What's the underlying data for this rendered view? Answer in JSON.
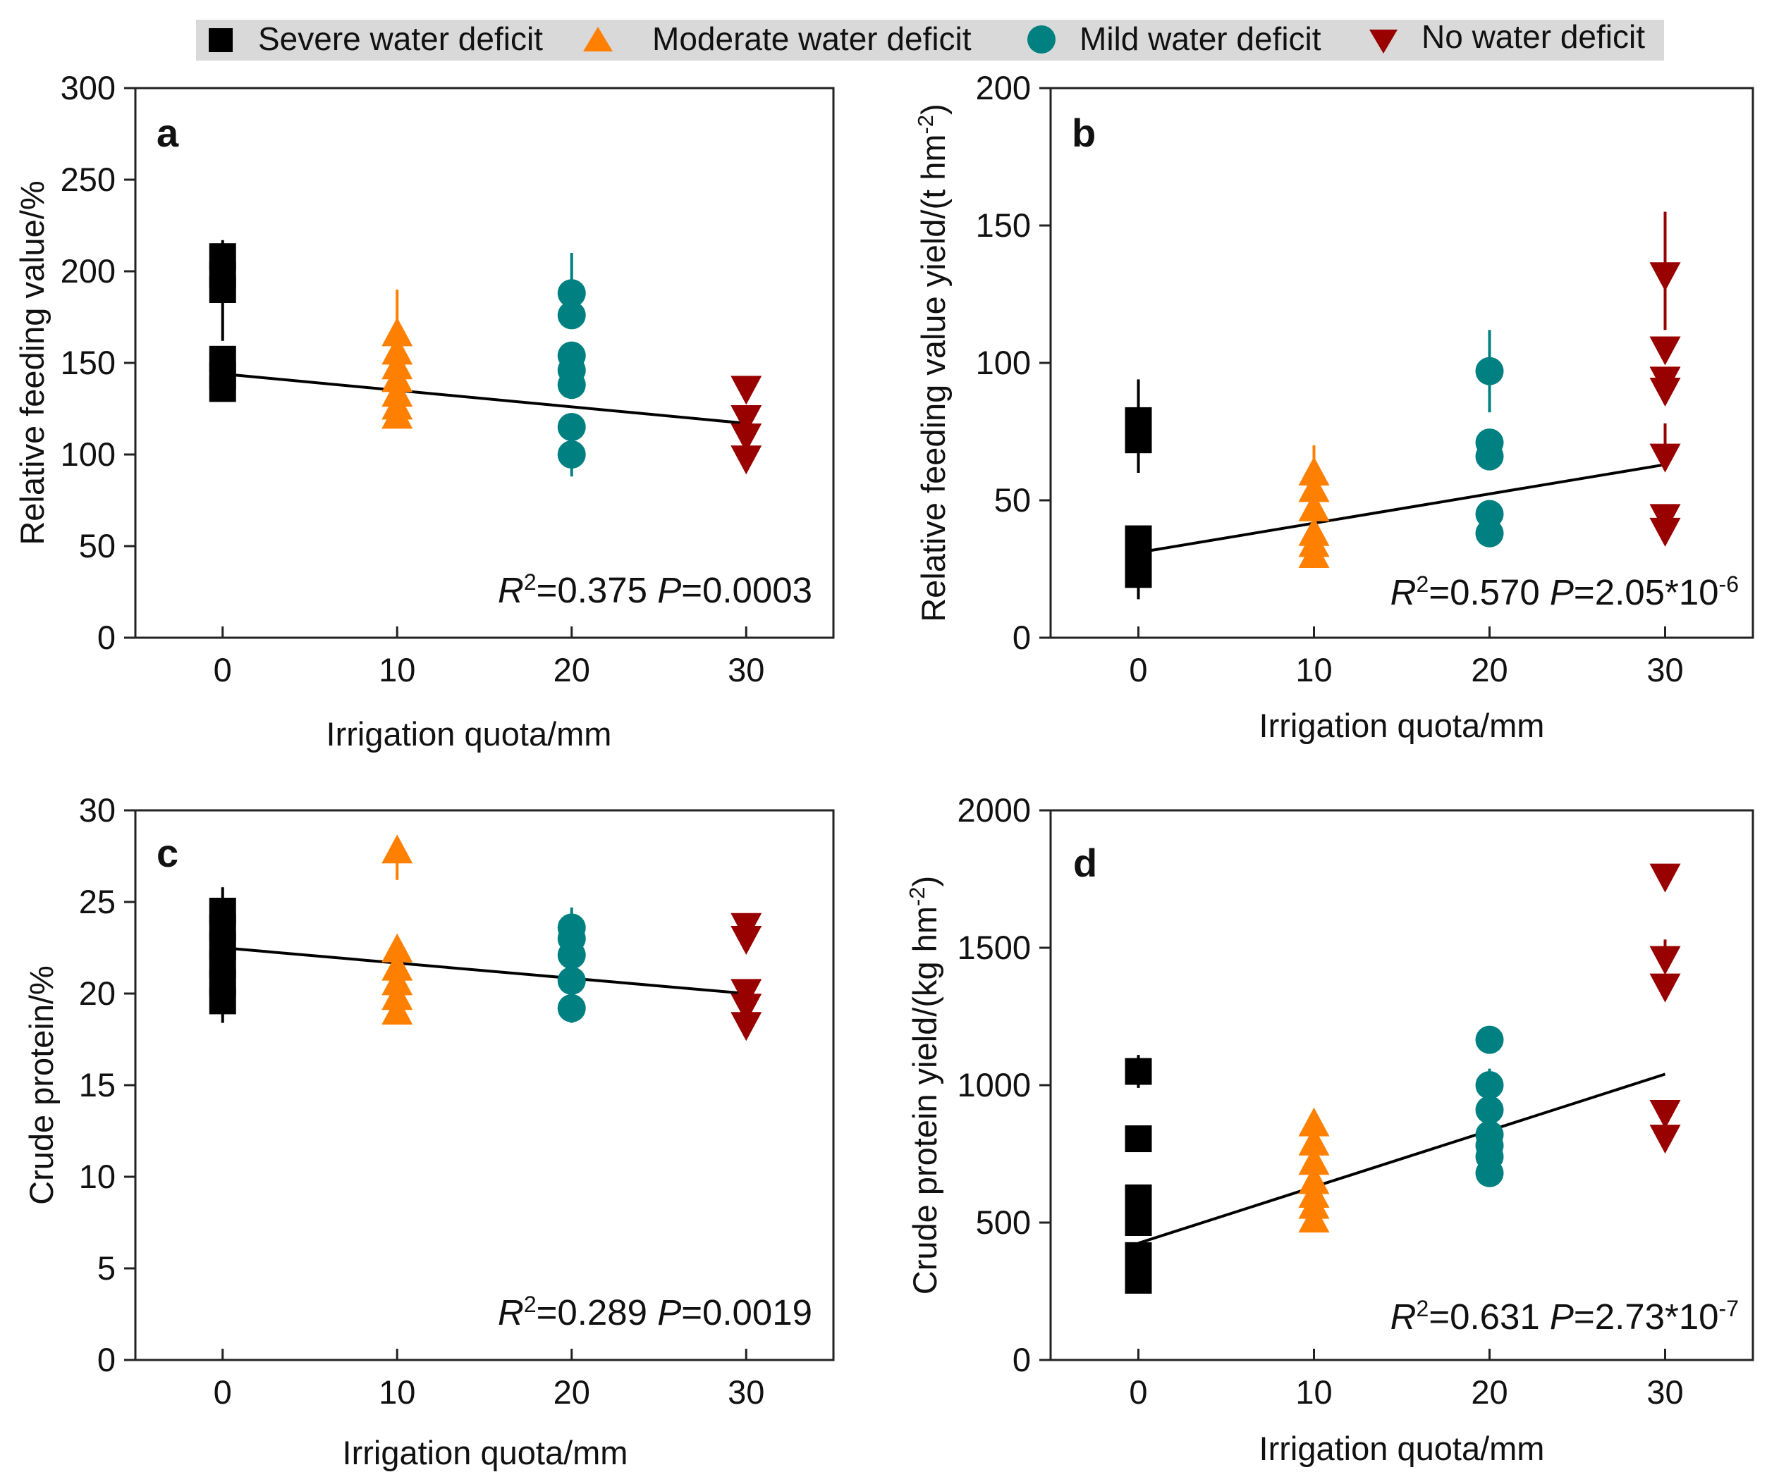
{
  "legend": [
    {
      "label": "Severe water deficit",
      "marker": "square",
      "color": "#000000"
    },
    {
      "label": "Moderate water deficit",
      "marker": "triangle-up",
      "color": "#FF8000"
    },
    {
      "label": "Mild water deficit",
      "marker": "circle",
      "color": "#008080"
    },
    {
      "label": "No water deficit",
      "marker": "triangle-down",
      "color": "#990000"
    }
  ],
  "colors": {
    "severe": "#000000",
    "moderate": "#FF8000",
    "mild": "#008080",
    "none": "#990000",
    "legend_bg": "#D9D9D9",
    "axis": "#222222"
  },
  "chart_data": [
    {
      "id": "a",
      "type": "scatter",
      "letter": "a",
      "xlabel": "Irrigation quota/mm",
      "ylabel": "Relative feeding value/%",
      "ylim": [
        0,
        300
      ],
      "yticks": [
        "0",
        "50",
        "100",
        "150",
        "200",
        "250",
        "300"
      ],
      "xlim": [
        -5,
        35
      ],
      "xticks": [
        "0",
        "10",
        "20",
        "30"
      ],
      "stats": {
        "r2_prefix": "R",
        "r2_sup": "2",
        "r2_value": "=0.375 ",
        "p_prefix": "P",
        "p_value": "=0.0003",
        "p_sup": ""
      },
      "fit": {
        "x": [
          0,
          30
        ],
        "y": [
          144,
          117
        ]
      },
      "series": [
        {
          "name": "Severe water deficit",
          "x": 0,
          "values": [
            208,
            198,
            190,
            152,
            143,
            136
          ],
          "err": [
            [
              208,
              217
            ],
            [
              190,
              162
            ],
            [
              136,
              130
            ]
          ]
        },
        {
          "name": "Moderate water deficit",
          "x": 10,
          "values": [
            166,
            156,
            148,
            141,
            133,
            126,
            121
          ],
          "err": [
            [
              166,
              190
            ]
          ]
        },
        {
          "name": "Mild water deficit",
          "x": 20,
          "values": [
            188,
            176,
            154,
            146,
            138,
            115,
            100
          ],
          "err": [
            [
              188,
              210
            ],
            [
              100,
              88
            ]
          ]
        },
        {
          "name": "No water deficit",
          "x": 30,
          "values": [
            136,
            120,
            110,
            98
          ],
          "err": [
            [
              136,
              141
            ],
            [
              98,
              95
            ]
          ]
        }
      ]
    },
    {
      "id": "b",
      "type": "scatter",
      "letter": "b",
      "xlabel": "Irrigation quota/mm",
      "ylabel": "Relative feeding value yield/(t hm",
      "ylabel_sup": "-2",
      "ylabel_end": ")",
      "ylim": [
        0,
        200
      ],
      "yticks": [
        "0",
        "50",
        "100",
        "150",
        "200"
      ],
      "xlim": [
        -5,
        35
      ],
      "xticks": [
        "0",
        "10",
        "20",
        "30"
      ],
      "stats": {
        "r2_prefix": "R",
        "r2_sup": "2",
        "r2_value": "=0.570 ",
        "p_prefix": "P",
        "p_value": "=2.05*10",
        "p_sup": "-6"
      },
      "fit": {
        "x": [
          0,
          30
        ],
        "y": [
          31,
          63
        ]
      },
      "series": [
        {
          "name": "Severe water deficit",
          "x": 0,
          "values": [
            79,
            72,
            36,
            30,
            23
          ],
          "err": [
            [
              79,
              94
            ],
            [
              72,
              60
            ],
            [
              23,
              14
            ]
          ]
        },
        {
          "name": "Moderate water deficit",
          "x": 10,
          "values": [
            60,
            54,
            47,
            38,
            34,
            30
          ],
          "err": [
            [
              60,
              70
            ]
          ]
        },
        {
          "name": "Mild water deficit",
          "x": 20,
          "values": [
            97,
            71,
            66,
            45,
            38
          ],
          "err": [
            [
              97,
              112
            ],
            [
              97,
              82
            ]
          ]
        },
        {
          "name": "No water deficit",
          "x": 30,
          "values": [
            132,
            105,
            94,
            90,
            66,
            44,
            39
          ],
          "err": [
            [
              132,
              155
            ],
            [
              132,
              112
            ],
            [
              66,
              78
            ]
          ]
        }
      ]
    },
    {
      "id": "c",
      "type": "scatter",
      "letter": "c",
      "xlabel": "Irrigation quota/mm",
      "ylabel": "Crude protein/%",
      "ylim": [
        0,
        30
      ],
      "yticks": [
        "0",
        "5",
        "10",
        "15",
        "20",
        "25",
        "30"
      ],
      "xlim": [
        -5,
        35
      ],
      "xticks": [
        "0",
        "10",
        "20",
        "30"
      ],
      "stats": {
        "r2_prefix": "R",
        "r2_sup": "2",
        "r2_value": "=0.289 ",
        "p_prefix": "P",
        "p_value": "=0.0019",
        "p_sup": ""
      },
      "fit": {
        "x": [
          0,
          30
        ],
        "y": [
          22.5,
          20.0
        ]
      },
      "series": [
        {
          "name": "Severe water deficit",
          "x": 0,
          "values": [
            24.5,
            23.6,
            22.6,
            21.6,
            20.6,
            19.6
          ],
          "err": [
            [
              24.5,
              25.8
            ],
            [
              19.6,
              18.4
            ]
          ]
        },
        {
          "name": "Moderate water deficit",
          "x": 10,
          "values": [
            27.8,
            22.4,
            21.4,
            20.6,
            19.8,
            19.0
          ],
          "err": [
            [
              27.8,
              26.2
            ]
          ]
        },
        {
          "name": "Mild water deficit",
          "x": 20,
          "values": [
            23.6,
            23.0,
            22.1,
            20.7,
            19.2
          ],
          "err": [
            [
              23.6,
              24.7
            ],
            [
              19.2,
              18.4
            ]
          ]
        },
        {
          "name": "No water deficit",
          "x": 30,
          "values": [
            23.7,
            23.0,
            20.1,
            19.3,
            18.3
          ],
          "err": [
            [
              23.7,
              24.3
            ]
          ]
        }
      ]
    },
    {
      "id": "d",
      "type": "scatter",
      "letter": "d",
      "xlabel": "Irrigation quota/mm",
      "ylabel": "Crude protein yield/(kg hm",
      "ylabel_sup": "-2",
      "ylabel_end": ")",
      "ylim": [
        0,
        2000
      ],
      "yticks": [
        "0",
        "500",
        "1000",
        "1500",
        "2000"
      ],
      "xlim": [
        -5,
        35
      ],
      "xticks": [
        "0",
        "10",
        "20",
        "30"
      ],
      "stats": {
        "r2_prefix": "R",
        "r2_sup": "2",
        "r2_value": "=0.631 ",
        "p_prefix": "P",
        "p_value": "=2.73*10",
        "p_sup": "-7"
      },
      "fit": {
        "x": [
          0,
          30
        ],
        "y": [
          425,
          1040
        ]
      },
      "series": [
        {
          "name": "Severe water deficit",
          "x": 0,
          "values": [
            1050,
            805,
            590,
            500,
            380,
            330,
            290
          ],
          "err": [
            [
              1050,
              1110
            ],
            [
              1050,
              990
            ]
          ]
        },
        {
          "name": "Moderate water deficit",
          "x": 10,
          "values": [
            860,
            790,
            720,
            650,
            600,
            560,
            510
          ],
          "err": [
            [
              860,
              890
            ]
          ]
        },
        {
          "name": "Mild water deficit",
          "x": 20,
          "values": [
            1165,
            1000,
            910,
            820,
            780,
            740,
            680
          ],
          "err": [
            [
              1000,
              1060
            ]
          ]
        },
        {
          "name": "No water deficit",
          "x": 30,
          "values": [
            1760,
            1460,
            1360,
            900,
            810
          ],
          "err": [
            [
              1460,
              1530
            ]
          ]
        }
      ]
    }
  ]
}
